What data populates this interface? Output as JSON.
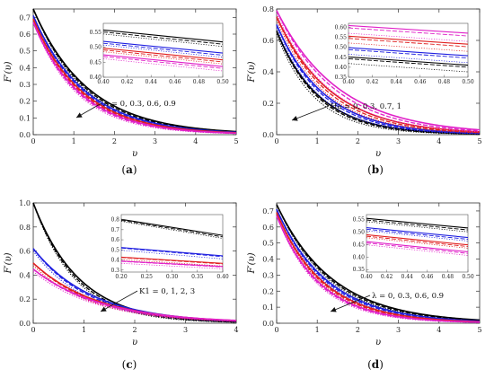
{
  "colors": {
    "black": "#000000",
    "blue": "#1f1fe0",
    "red": "#e02020",
    "magenta": "#e020c8"
  },
  "chart_data": [
    {
      "type": "line",
      "panel_label": "a",
      "ylabel": "F′(υ)",
      "xlabel": "υ",
      "xlim": [
        0,
        5
      ],
      "ylim": [
        0,
        0.75
      ],
      "xticks": [
        "0",
        "1",
        "2",
        "3",
        "4",
        "5"
      ],
      "yticks": [
        "0.0",
        "0.1",
        "0.2",
        "0.3",
        "0.4",
        "0.5",
        "0.6",
        "0.7"
      ],
      "annotation": "A = 0, 0.3, 0.6, 0.9",
      "inset": {
        "xlim": [
          0.4,
          0.5
        ],
        "ylim": [
          0.4,
          0.58
        ],
        "xticks": [
          "0.40",
          "0.42",
          "0.44",
          "0.46",
          "0.48",
          "0.50"
        ],
        "yticks": [
          "0.40",
          "0.45",
          "0.50",
          "0.55"
        ]
      },
      "series": [
        {
          "color": "black",
          "solid_f0": 0.75,
          "solid_decay": 0.74,
          "dashed_f0": 0.75,
          "dashed_decay": 0.77,
          "dotted_f0": 0.75,
          "dotted_decay": 0.8
        },
        {
          "color": "blue",
          "solid_f0": 0.71,
          "solid_decay": 0.78,
          "dashed_f0": 0.71,
          "dashed_decay": 0.81,
          "dotted_f0": 0.71,
          "dotted_decay": 0.84
        },
        {
          "color": "red",
          "solid_f0": 0.69,
          "solid_decay": 0.82,
          "dashed_f0": 0.69,
          "dashed_decay": 0.85,
          "dotted_f0": 0.69,
          "dotted_decay": 0.88
        },
        {
          "color": "magenta",
          "solid_f0": 0.67,
          "solid_decay": 0.86,
          "dashed_f0": 0.67,
          "dashed_decay": 0.89,
          "dotted_f0": 0.67,
          "dotted_decay": 0.93
        }
      ]
    },
    {
      "type": "line",
      "panel_label": "b",
      "ylabel": "F′(υ)",
      "xlabel": "υ",
      "xlim": [
        0,
        5
      ],
      "ylim": [
        0,
        0.8
      ],
      "xticks": [
        "0",
        "1",
        "2",
        "3",
        "4",
        "5"
      ],
      "yticks": [
        "0.0",
        "0.2",
        "0.4",
        "0.6",
        "0.8"
      ],
      "annotation": "Ha = 0, 0.3, 0.7, 1",
      "inset": {
        "xlim": [
          0.4,
          0.5
        ],
        "ylim": [
          0.35,
          0.62
        ],
        "xticks": [
          "0.40",
          "0.42",
          "0.44",
          "0.46",
          "0.48",
          "0.50"
        ],
        "yticks": [
          "0.35",
          "0.40",
          "0.45",
          "0.50",
          "0.55",
          "0.60"
        ]
      },
      "series": [
        {
          "color": "black",
          "solid_f0": 0.66,
          "solid_decay": 0.95,
          "dashed_f0": 0.66,
          "dashed_decay": 1.0,
          "dotted_f0": 0.64,
          "dotted_decay": 1.06
        },
        {
          "color": "blue",
          "solid_f0": 0.7,
          "solid_decay": 0.85,
          "dashed_f0": 0.7,
          "dashed_decay": 0.9,
          "dotted_f0": 0.68,
          "dotted_decay": 0.95
        },
        {
          "color": "red",
          "solid_f0": 0.75,
          "solid_decay": 0.75,
          "dashed_f0": 0.75,
          "dashed_decay": 0.8,
          "dotted_f0": 0.73,
          "dotted_decay": 0.84
        },
        {
          "color": "magenta",
          "solid_f0": 0.79,
          "solid_decay": 0.65,
          "dashed_f0": 0.79,
          "dashed_decay": 0.7,
          "dotted_f0": 0.77,
          "dotted_decay": 0.75
        }
      ]
    },
    {
      "type": "line",
      "panel_label": "c",
      "ylabel": "F′(υ)",
      "xlabel": "υ",
      "xlim": [
        0,
        4
      ],
      "ylim": [
        0,
        1.0
      ],
      "xticks": [
        "0",
        "1",
        "2",
        "3",
        "4"
      ],
      "yticks": [
        "0.0",
        "0.2",
        "0.4",
        "0.6",
        "0.8",
        "1.0"
      ],
      "annotation": "K1 = 0, 1, 2, 3",
      "inset": {
        "xlim": [
          0.2,
          0.4
        ],
        "ylim": [
          0.28,
          0.85
        ],
        "xticks": [
          "0.20",
          "0.25",
          "0.30",
          "0.35",
          "0.40"
        ],
        "yticks": [
          "0.3",
          "0.4",
          "0.5",
          "0.6",
          "0.7",
          "0.8"
        ]
      },
      "series": [
        {
          "color": "black",
          "solid_f0": 1.0,
          "solid_decay": 1.1,
          "dashed_f0": 1.0,
          "dashed_decay": 1.16,
          "dotted_f0": 1.0,
          "dotted_decay": 1.22
        },
        {
          "color": "blue",
          "solid_f0": 0.62,
          "solid_decay": 0.85,
          "dashed_f0": 0.62,
          "dashed_decay": 0.9,
          "dotted_f0": 0.6,
          "dotted_decay": 0.95
        },
        {
          "color": "red",
          "solid_f0": 0.5,
          "solid_decay": 0.78,
          "dashed_f0": 0.5,
          "dashed_decay": 0.82,
          "dotted_f0": 0.48,
          "dotted_decay": 0.86
        },
        {
          "color": "magenta",
          "solid_f0": 0.45,
          "solid_decay": 0.74,
          "dashed_f0": 0.45,
          "dashed_decay": 0.77,
          "dotted_f0": 0.43,
          "dotted_decay": 0.8
        }
      ]
    },
    {
      "type": "line",
      "panel_label": "d",
      "ylabel": "F′(υ)",
      "xlabel": "υ",
      "xlim": [
        0,
        5
      ],
      "ylim": [
        0,
        0.75
      ],
      "xticks": [
        "0",
        "1",
        "2",
        "3",
        "4",
        "5"
      ],
      "yticks": [
        "0.0",
        "0.1",
        "0.2",
        "0.3",
        "0.4",
        "0.5",
        "0.6",
        "0.7"
      ],
      "annotation": "λ = 0, 0.3, 0.6, 0.9",
      "inset": {
        "xlim": [
          0.4,
          0.5
        ],
        "ylim": [
          0.34,
          0.57
        ],
        "xticks": [
          "0.40",
          "0.42",
          "0.44",
          "0.46",
          "0.48",
          "0.50"
        ],
        "yticks": [
          "0.35",
          "0.40",
          "0.45",
          "0.50",
          "0.55"
        ]
      },
      "series": [
        {
          "color": "black",
          "solid_f0": 0.74,
          "solid_decay": 0.72,
          "dashed_f0": 0.74,
          "dashed_decay": 0.75,
          "dotted_f0": 0.74,
          "dotted_decay": 0.78
        },
        {
          "color": "blue",
          "solid_f0": 0.71,
          "solid_decay": 0.79,
          "dashed_f0": 0.71,
          "dashed_decay": 0.82,
          "dotted_f0": 0.71,
          "dotted_decay": 0.85
        },
        {
          "color": "red",
          "solid_f0": 0.69,
          "solid_decay": 0.86,
          "dashed_f0": 0.69,
          "dashed_decay": 0.89,
          "dotted_f0": 0.69,
          "dotted_decay": 0.92
        },
        {
          "color": "magenta",
          "solid_f0": 0.67,
          "solid_decay": 0.93,
          "dashed_f0": 0.67,
          "dashed_decay": 0.96,
          "dotted_f0": 0.67,
          "dotted_decay": 1.0
        }
      ]
    }
  ]
}
